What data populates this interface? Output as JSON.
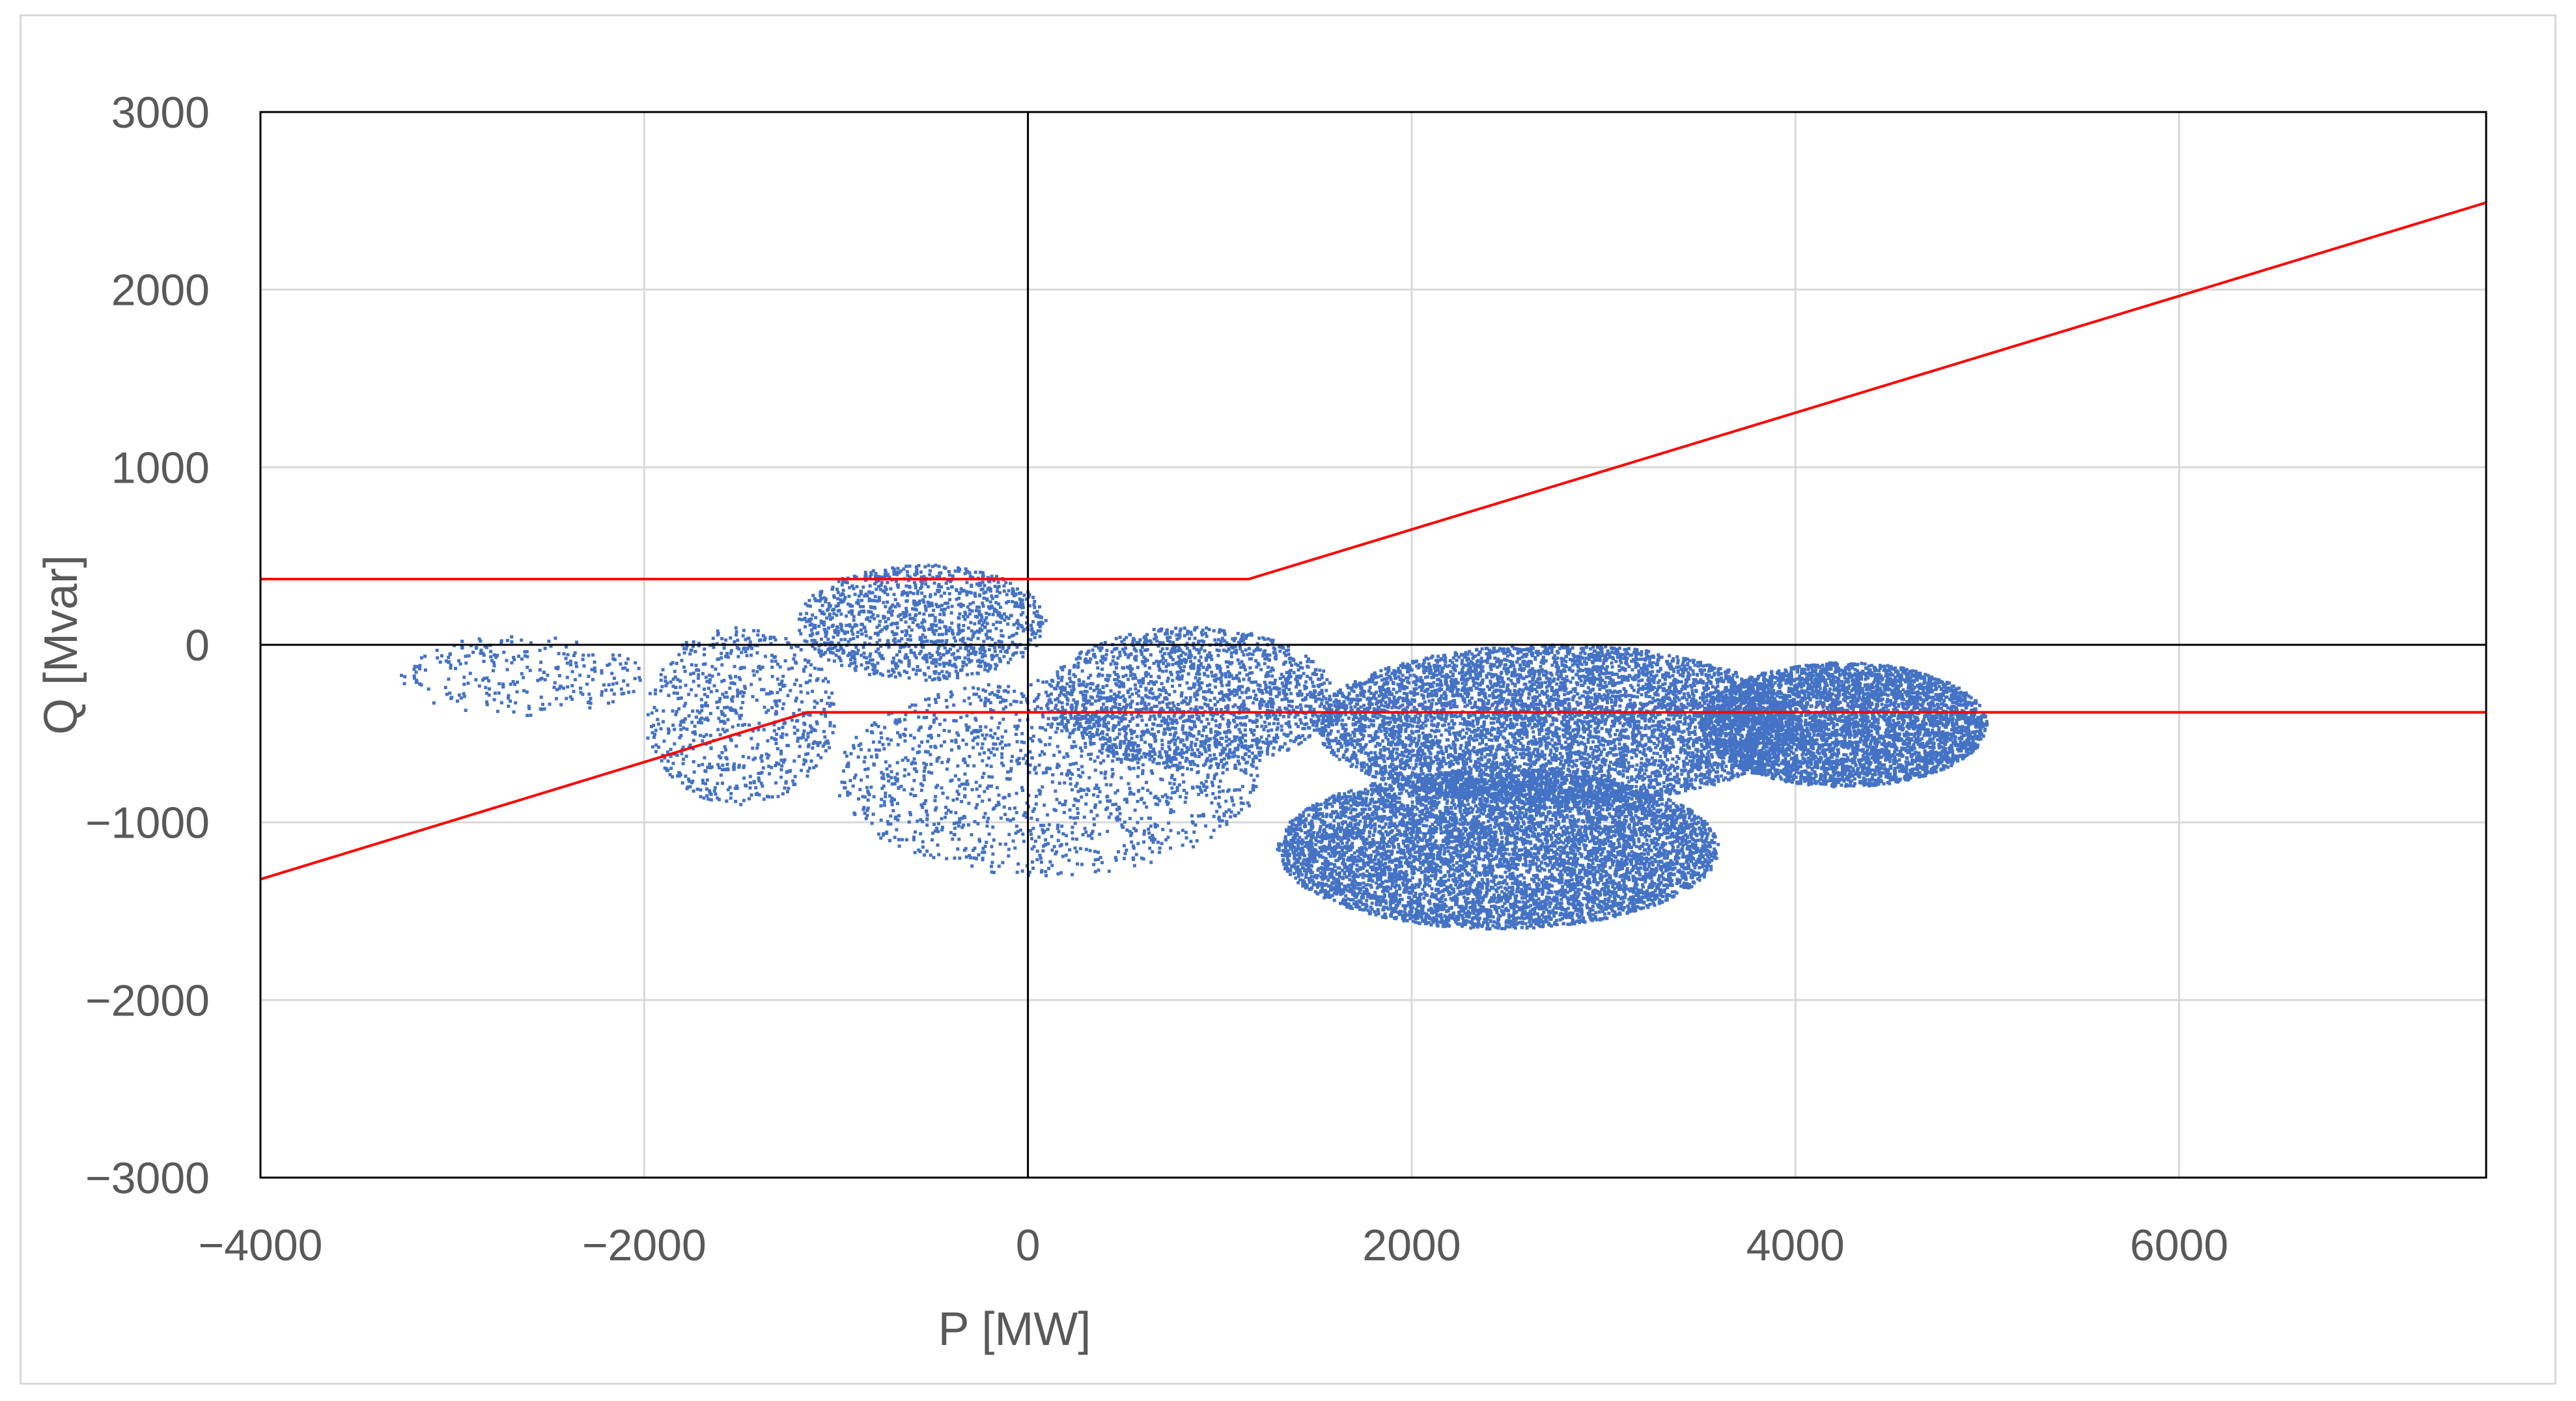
{
  "chart_data": {
    "type": "scatter",
    "xlabel": "P [MW]",
    "ylabel": "Q [Mvar]",
    "xlim": [
      -4000,
      7600
    ],
    "ylim": [
      -3000,
      3000
    ],
    "x_ticks": [
      -4000,
      -2000,
      0,
      2000,
      4000,
      6000
    ],
    "y_ticks": [
      -3000,
      -2000,
      -1000,
      0,
      1000,
      2000,
      3000
    ],
    "x_tick_labels": [
      "−4000",
      "−2000",
      "0",
      "2000",
      "4000",
      "6000"
    ],
    "y_tick_labels": [
      "−3000",
      "−2000",
      "−1000",
      "0",
      "1000",
      "2000",
      "3000"
    ],
    "grid": true,
    "colors": {
      "points": "#4472c4",
      "limits": "#ff0000",
      "grid": "#d9d9d9",
      "axis": "#000000"
    },
    "limit_lines": [
      {
        "x": [
          -4000,
          1150,
          7600
        ],
        "y": [
          370,
          370,
          2490
        ]
      },
      {
        "x": [
          -4000,
          -1150,
          7600
        ],
        "y": [
          -1320,
          -380,
          -380
        ]
      }
    ],
    "point_clusters": [
      {
        "x": [
          -3300,
          -2000
        ],
        "y": [
          -400,
          50
        ],
        "count": 260
      },
      {
        "x": [
          -2000,
          -1000
        ],
        "y": [
          -900,
          100
        ],
        "count": 700
      },
      {
        "x": [
          -1200,
          100
        ],
        "y": [
          -200,
          450
        ],
        "count": 1200
      },
      {
        "x": [
          -1000,
          1200
        ],
        "y": [
          -1300,
          -200
        ],
        "count": 1400
      },
      {
        "x": [
          100,
          1600
        ],
        "y": [
          -700,
          100
        ],
        "count": 1800
      },
      {
        "x": [
          1300,
          3600
        ],
        "y": [
          -1600,
          -700
        ],
        "count": 7000
      },
      {
        "x": [
          1500,
          4000
        ],
        "y": [
          -900,
          0
        ],
        "count": 6000
      },
      {
        "x": [
          3500,
          5000
        ],
        "y": [
          -800,
          -100
        ],
        "count": 4500
      }
    ]
  }
}
